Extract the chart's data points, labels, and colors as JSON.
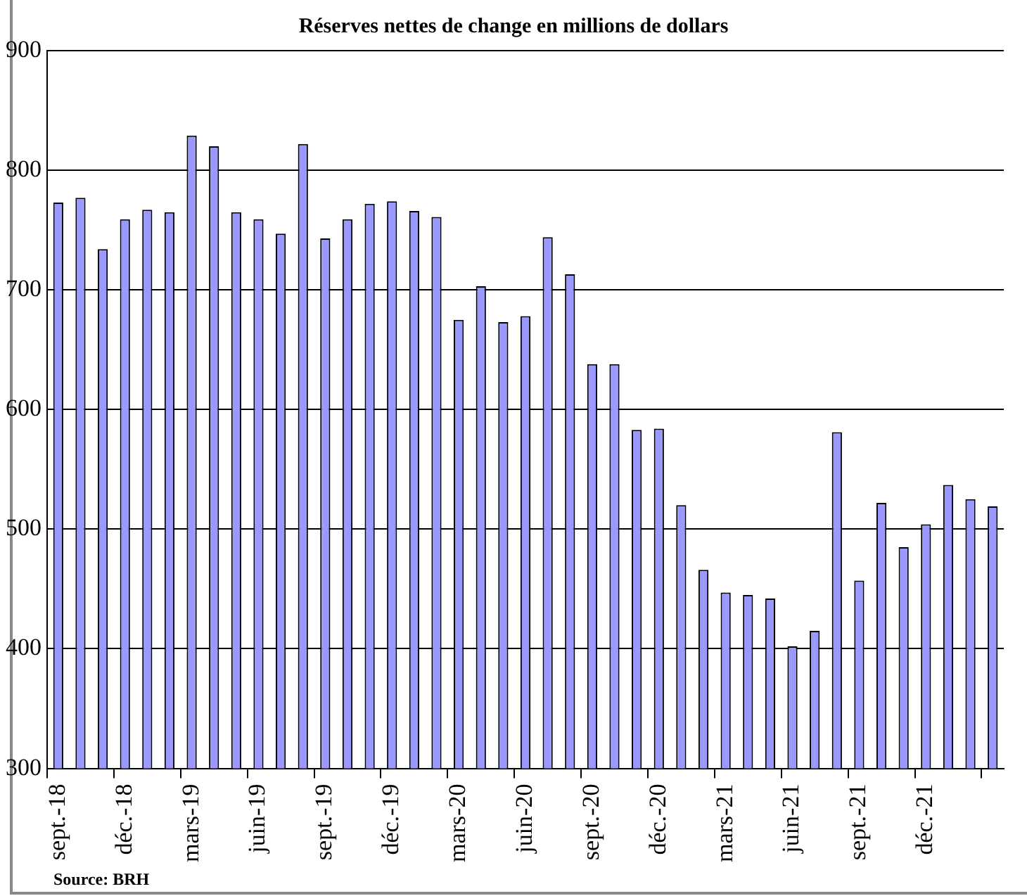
{
  "chart_data": {
    "type": "bar",
    "title": "Réserves nettes de change en millions de dollars",
    "categories": [
      "sept.-18",
      null,
      null,
      "déc.-18",
      null,
      null,
      "mars-19",
      null,
      null,
      "juin-19",
      null,
      null,
      "sept.-19",
      null,
      null,
      "déc.-19",
      null,
      null,
      "mars-20",
      null,
      null,
      "juin-20",
      null,
      null,
      "sept.-20",
      null,
      null,
      "déc.-20",
      null,
      null,
      "mars-21",
      null,
      null,
      "juin-21",
      null,
      null,
      "sept.-21",
      null,
      null,
      "déc.-21",
      null,
      null,
      null
    ],
    "values": [
      773,
      777,
      734,
      759,
      767,
      765,
      829,
      820,
      765,
      759,
      747,
      822,
      743,
      759,
      772,
      774,
      766,
      761,
      675,
      703,
      673,
      678,
      744,
      713,
      638,
      638,
      583,
      584,
      520,
      466,
      447,
      445,
      442,
      402,
      415,
      581,
      457,
      522,
      485,
      504,
      537,
      525,
      519
    ],
    "color": "#9999ff",
    "ylim": [
      300,
      900
    ],
    "yticks": [
      300,
      400,
      500,
      600,
      700,
      800,
      900
    ],
    "grid": "y",
    "legend": false,
    "annotations": [
      "Source: BRH"
    ]
  }
}
